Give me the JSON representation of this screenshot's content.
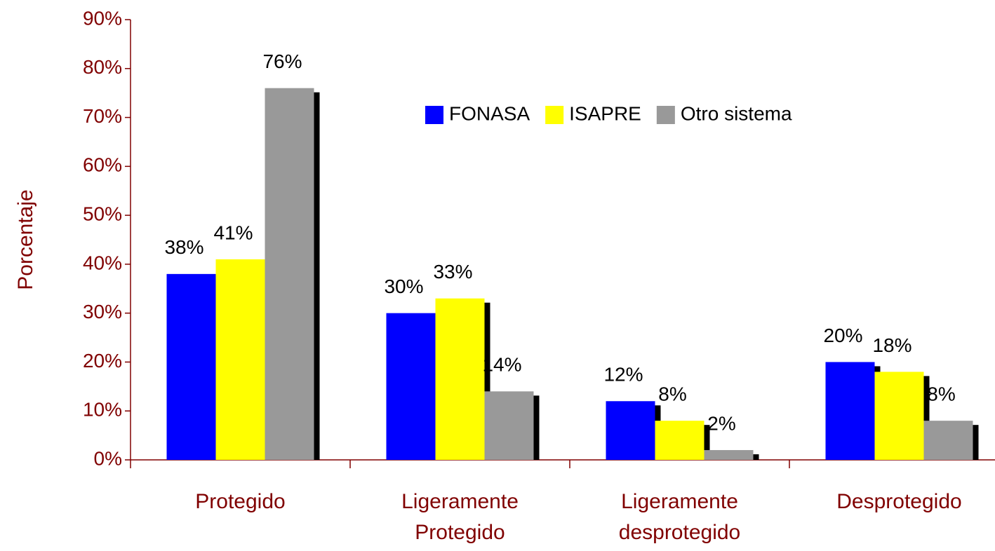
{
  "chart_data": {
    "type": "bar",
    "y_label": "Porcentaje",
    "categories": [
      "Protegido",
      "Ligeramente Protegido",
      "Ligeramente desprotegido",
      "Desprotegido"
    ],
    "series": [
      {
        "name": "FONASA",
        "color": "#0000ff",
        "values": [
          38,
          30,
          12,
          20
        ],
        "value_labels": [
          "38%",
          "30%",
          "12%",
          "20%"
        ]
      },
      {
        "name": "ISAPRE",
        "color": "#ffff00",
        "values": [
          41,
          33,
          8,
          18
        ],
        "value_labels": [
          "41%",
          "33%",
          "8%",
          "18%"
        ]
      },
      {
        "name": "Otro sistema",
        "color": "#999999",
        "values": [
          76,
          14,
          2,
          8
        ],
        "value_labels": [
          "76%",
          "14%",
          "2%",
          "8%"
        ]
      }
    ],
    "ylim": [
      0,
      90
    ],
    "yticks": [
      {
        "value": 0,
        "label": "0%"
      },
      {
        "value": 10,
        "label": "10%"
      },
      {
        "value": 20,
        "label": "20%"
      },
      {
        "value": 30,
        "label": "30%"
      },
      {
        "value": 40,
        "label": "40%"
      },
      {
        "value": 50,
        "label": "50%"
      },
      {
        "value": 60,
        "label": "60%"
      },
      {
        "value": 70,
        "label": "70%"
      },
      {
        "value": 80,
        "label": "80%"
      },
      {
        "value": 90,
        "label": "90%"
      }
    ],
    "legend": "top-right",
    "grid": false
  }
}
